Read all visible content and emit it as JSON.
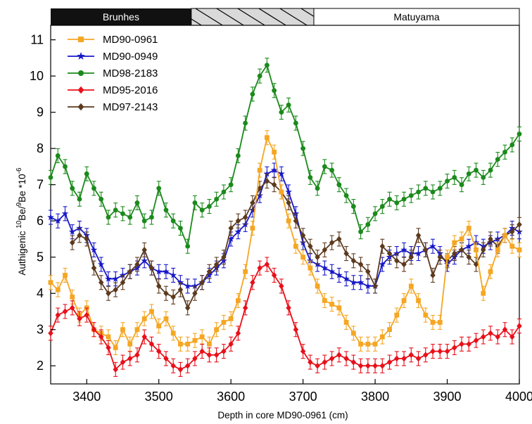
{
  "chart_data": {
    "type": "line",
    "xlabel": "Depth in core MD90-0961 (cm)",
    "ylabel_parts": [
      "Authigenic ",
      "10",
      "Be/",
      "9",
      "Be *10",
      "-6"
    ],
    "xlim": [
      3350,
      4000
    ],
    "ylim": [
      1.5,
      11.4
    ],
    "x_ticks": [
      3400,
      3500,
      3600,
      3700,
      3800,
      3900,
      4000
    ],
    "y_ticks": [
      2,
      3,
      4,
      5,
      6,
      7,
      8,
      9,
      10,
      11
    ],
    "legend_position": "top-left",
    "polarity_bar": {
      "brunhes_label": "Brunhes",
      "matuyama_label": "Matuyama",
      "brunhes_end": 3545,
      "transition_end": 3715
    },
    "series": [
      {
        "name": "MD90-0961",
        "color": "#f5a623",
        "marker": "square",
        "x": [
          3350,
          3360,
          3370,
          3380,
          3390,
          3400,
          3410,
          3420,
          3430,
          3440,
          3450,
          3460,
          3470,
          3480,
          3490,
          3500,
          3510,
          3520,
          3530,
          3540,
          3550,
          3560,
          3570,
          3580,
          3590,
          3600,
          3610,
          3620,
          3630,
          3640,
          3650,
          3660,
          3670,
          3680,
          3690,
          3700,
          3710,
          3720,
          3730,
          3740,
          3750,
          3760,
          3770,
          3780,
          3790,
          3800,
          3810,
          3820,
          3830,
          3840,
          3850,
          3860,
          3870,
          3880,
          3890,
          3900,
          3910,
          3920,
          3930,
          3940,
          3950,
          3960,
          3970,
          3980,
          3990,
          4000
        ],
        "y": [
          4.3,
          4.1,
          4.5,
          3.9,
          3.4,
          3.6,
          3.0,
          2.9,
          2.8,
          2.5,
          3.0,
          2.6,
          3.0,
          3.3,
          3.5,
          3.1,
          3.3,
          2.9,
          2.6,
          2.6,
          2.7,
          2.8,
          2.6,
          3.0,
          3.2,
          3.3,
          3.8,
          4.6,
          5.8,
          7.4,
          8.3,
          7.9,
          6.8,
          6.0,
          5.3,
          5.0,
          4.7,
          4.2,
          3.8,
          3.7,
          3.6,
          3.2,
          2.9,
          2.6,
          2.6,
          2.6,
          2.8,
          3.0,
          3.4,
          3.8,
          4.2,
          3.8,
          3.4,
          3.2,
          3.2,
          5.0,
          5.4,
          5.5,
          5.8,
          5.2,
          4.0,
          4.6,
          5.2,
          5.6,
          5.3,
          5.2
        ]
      },
      {
        "name": "MD90-0949",
        "color": "#1818c8",
        "marker": "star",
        "x": [
          3350,
          3360,
          3370,
          3380,
          3390,
          3400,
          3410,
          3420,
          3430,
          3440,
          3450,
          3460,
          3470,
          3480,
          3490,
          3500,
          3510,
          3520,
          3530,
          3540,
          3550,
          3560,
          3570,
          3580,
          3590,
          3600,
          3610,
          3620,
          3630,
          3640,
          3650,
          3660,
          3670,
          3680,
          3690,
          3700,
          3710,
          3720,
          3730,
          3740,
          3750,
          3760,
          3770,
          3780,
          3790,
          3800,
          3810,
          3820,
          3830,
          3840,
          3850,
          3860,
          3870,
          3880,
          3890,
          3900,
          3910,
          3920,
          3930,
          3940,
          3950,
          3960,
          3970,
          3980,
          3990,
          4000
        ],
        "y": [
          6.1,
          6.0,
          6.2,
          5.7,
          5.8,
          5.6,
          5.2,
          4.8,
          4.4,
          4.4,
          4.5,
          4.6,
          4.7,
          4.9,
          4.7,
          4.6,
          4.6,
          4.5,
          4.3,
          4.2,
          4.2,
          4.3,
          4.5,
          4.7,
          4.9,
          5.5,
          5.7,
          5.9,
          6.3,
          6.7,
          7.3,
          7.4,
          7.3,
          6.8,
          6.2,
          5.4,
          4.9,
          4.8,
          4.7,
          4.6,
          4.5,
          4.4,
          4.3,
          4.3,
          4.2,
          4.2,
          4.8,
          5.0,
          5.1,
          5.2,
          5.1,
          5.1,
          5.2,
          5.3,
          5.1,
          4.8,
          5.0,
          5.2,
          5.3,
          5.4,
          5.3,
          5.4,
          5.5,
          5.6,
          5.8,
          5.7
        ]
      },
      {
        "name": "MD98-2183",
        "color": "#1b8a1b",
        "marker": "circle",
        "x": [
          3350,
          3360,
          3370,
          3380,
          3390,
          3400,
          3410,
          3420,
          3430,
          3440,
          3450,
          3460,
          3470,
          3480,
          3490,
          3500,
          3510,
          3520,
          3530,
          3540,
          3550,
          3560,
          3570,
          3580,
          3590,
          3600,
          3610,
          3620,
          3630,
          3640,
          3650,
          3660,
          3670,
          3680,
          3690,
          3700,
          3710,
          3720,
          3730,
          3740,
          3750,
          3760,
          3770,
          3780,
          3790,
          3800,
          3810,
          3820,
          3830,
          3840,
          3850,
          3860,
          3870,
          3880,
          3890,
          3900,
          3910,
          3920,
          3930,
          3940,
          3950,
          3960,
          3970,
          3980,
          3990,
          4000
        ],
        "y": [
          7.2,
          7.8,
          7.5,
          6.9,
          6.6,
          7.3,
          6.9,
          6.6,
          6.1,
          6.3,
          6.2,
          6.1,
          6.5,
          6.0,
          6.1,
          6.9,
          6.3,
          6.0,
          5.8,
          5.3,
          6.5,
          6.3,
          6.4,
          6.6,
          6.8,
          7.0,
          7.8,
          8.7,
          9.5,
          10.0,
          10.3,
          9.6,
          9.0,
          9.2,
          8.7,
          8.0,
          7.2,
          6.9,
          7.5,
          7.4,
          7.0,
          6.7,
          6.4,
          5.7,
          5.9,
          6.2,
          6.4,
          6.6,
          6.5,
          6.6,
          6.7,
          6.8,
          6.9,
          6.8,
          6.9,
          7.1,
          7.2,
          7.0,
          7.3,
          7.4,
          7.2,
          7.4,
          7.7,
          7.9,
          8.1,
          8.4
        ]
      },
      {
        "name": "MD95-2016",
        "color": "#e8101a",
        "marker": "diamond",
        "x": [
          3350,
          3360,
          3370,
          3380,
          3390,
          3400,
          3410,
          3420,
          3430,
          3440,
          3450,
          3460,
          3470,
          3480,
          3490,
          3500,
          3510,
          3520,
          3530,
          3540,
          3550,
          3560,
          3570,
          3580,
          3590,
          3600,
          3610,
          3620,
          3630,
          3640,
          3650,
          3660,
          3670,
          3680,
          3690,
          3700,
          3710,
          3720,
          3730,
          3740,
          3750,
          3760,
          3770,
          3780,
          3790,
          3800,
          3810,
          3820,
          3830,
          3840,
          3850,
          3860,
          3870,
          3880,
          3890,
          3900,
          3910,
          3920,
          3930,
          3940,
          3950,
          3960,
          3970,
          3980,
          3990,
          4000
        ],
        "y": [
          2.9,
          3.4,
          3.5,
          3.6,
          3.3,
          3.4,
          3.0,
          2.8,
          2.5,
          1.9,
          2.1,
          2.2,
          2.3,
          2.8,
          2.6,
          2.4,
          2.2,
          2.0,
          1.9,
          2.0,
          2.2,
          2.4,
          2.3,
          2.3,
          2.4,
          2.6,
          2.9,
          3.6,
          4.3,
          4.7,
          4.8,
          4.5,
          4.2,
          3.6,
          3.0,
          2.4,
          2.1,
          2.0,
          2.1,
          2.2,
          2.3,
          2.2,
          2.1,
          2.0,
          2.0,
          2.0,
          2.0,
          2.1,
          2.2,
          2.2,
          2.3,
          2.2,
          2.3,
          2.4,
          2.4,
          2.4,
          2.5,
          2.6,
          2.6,
          2.7,
          2.8,
          2.9,
          2.8,
          3.0,
          2.8,
          3.1
        ]
      },
      {
        "name": "MD97-2143",
        "color": "#5c3a1e",
        "marker": "diamond",
        "x": [
          3380,
          3390,
          3400,
          3410,
          3420,
          3430,
          3440,
          3450,
          3460,
          3470,
          3480,
          3490,
          3500,
          3510,
          3520,
          3530,
          3540,
          3550,
          3560,
          3570,
          3580,
          3590,
          3600,
          3610,
          3620,
          3630,
          3640,
          3650,
          3660,
          3670,
          3680,
          3690,
          3700,
          3710,
          3720,
          3730,
          3740,
          3750,
          3760,
          3770,
          3780,
          3790,
          3800,
          3810,
          3820,
          3830,
          3840,
          3850,
          3860,
          3870,
          3880,
          3890,
          3900,
          3910,
          3920,
          3930,
          3940,
          3950,
          3960,
          3970,
          3980,
          3990,
          4000
        ],
        "y": [
          5.4,
          5.6,
          5.5,
          4.7,
          4.3,
          4.0,
          4.1,
          4.3,
          4.6,
          4.8,
          5.2,
          4.7,
          4.2,
          4.0,
          3.9,
          4.1,
          3.6,
          4.0,
          4.3,
          4.6,
          4.8,
          5.0,
          5.8,
          6.0,
          6.1,
          6.5,
          6.9,
          7.1,
          7.0,
          6.8,
          6.5,
          6.0,
          5.6,
          5.3,
          5.0,
          5.2,
          5.4,
          5.5,
          5.1,
          4.9,
          4.8,
          4.6,
          4.2,
          5.3,
          5.1,
          4.9,
          4.8,
          5.0,
          5.6,
          5.2,
          4.5,
          5.0,
          4.9,
          5.1,
          5.2,
          5.0,
          4.8,
          5.2,
          5.5,
          5.3,
          5.6,
          5.7,
          5.9
        ]
      }
    ]
  }
}
